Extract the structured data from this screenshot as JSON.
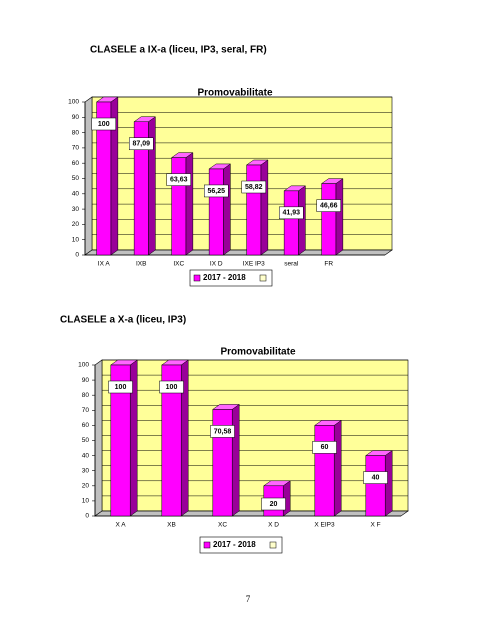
{
  "headings": [
    "CLASELE a IX-a (liceu, IP3, seral, FR)",
    "CLASELE a X-a (liceu, IP3)"
  ],
  "chart_data": [
    {
      "type": "bar",
      "title": "Promovabilitate",
      "categories": [
        "IX A",
        "IXB",
        "IXC",
        "IX D",
        "IXE IP3",
        "seral",
        "FR"
      ],
      "series": [
        {
          "name": "2017 - 2018",
          "color": "#ff00ff",
          "values": [
            100,
            87.09,
            63.63,
            56.25,
            58.82,
            41.93,
            46.66
          ],
          "value_labels": [
            "100",
            "87,09",
            "63,63",
            "56,25",
            "58,82",
            "41,93",
            "46,66"
          ]
        }
      ],
      "ylim": [
        0,
        100
      ],
      "yticks": [
        0,
        10,
        20,
        30,
        40,
        50,
        60,
        70,
        80,
        90,
        100
      ],
      "grid": true
    },
    {
      "type": "bar",
      "title": "Promovabilitate",
      "categories": [
        "X A",
        "XB",
        "XC",
        "X D",
        "X EIP3",
        "X F"
      ],
      "series": [
        {
          "name": "2017 - 2018",
          "color": "#ff00ff",
          "values": [
            100,
            100,
            70.58,
            20,
            60,
            40
          ],
          "value_labels": [
            "100",
            "100",
            "70,58",
            "20",
            "60",
            "40"
          ]
        }
      ],
      "ylim": [
        0,
        100
      ],
      "yticks": [
        0,
        10,
        20,
        30,
        40,
        50,
        60,
        70,
        80,
        90,
        100
      ],
      "grid": true
    }
  ],
  "page_number": "7"
}
